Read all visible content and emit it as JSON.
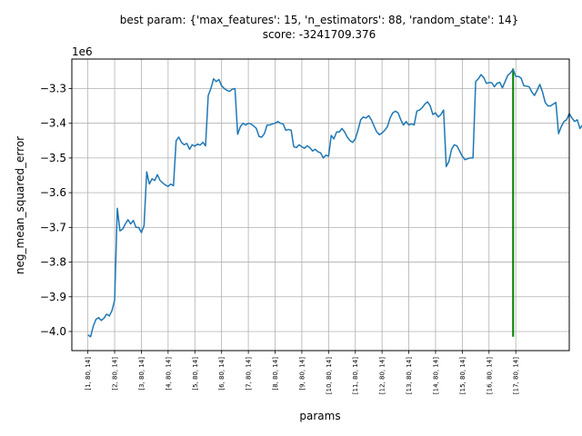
{
  "chart_data": {
    "type": "line",
    "title": "best param: {'max_features': 15, 'n_estimators': 88, 'random_state': 14}",
    "subtitle": "score: -3241709.376",
    "xlabel": "params",
    "ylabel": "neg_mean_squared_error",
    "offset_text": "1e6",
    "grid": true,
    "ylim": [
      -4.055,
      -3.215
    ],
    "xlim": [
      -6,
      180
    ],
    "yticks": [
      -4.0,
      -3.9,
      -3.8,
      -3.7,
      -3.6,
      -3.5,
      -3.4,
      -3.3
    ],
    "ytick_labels": [
      "−4.0",
      "−3.9",
      "−3.8",
      "−3.7",
      "−3.6",
      "−3.5",
      "−3.4",
      "−3.3"
    ],
    "xticks": [
      0,
      10,
      20,
      30,
      40,
      50,
      60,
      70,
      80,
      90,
      100,
      110,
      120,
      130,
      140,
      150,
      160
    ],
    "xtick_labels": [
      "[1, 80, 14]",
      "[2, 80, 14]",
      "[3, 80, 14]",
      "[4, 80, 14]",
      "[5, 80, 14]",
      "[6, 80, 14]",
      "[7, 80, 14]",
      "[8, 80, 14]",
      "[9, 80, 14]",
      "[10, 80, 14]",
      "[11, 80, 14]",
      "[12, 80, 14]",
      "[13, 80, 14]",
      "[14, 80, 14]",
      "[15, 80, 14]",
      "[16, 80, 14]",
      "[17, 80, 14]"
    ],
    "series": [
      {
        "color": "#1f77b4",
        "points": [
          [
            0,
            -4.01
          ],
          [
            1,
            -4.015
          ],
          [
            2,
            -3.985
          ],
          [
            3,
            -3.965
          ],
          [
            4,
            -3.96
          ],
          [
            5,
            -3.968
          ],
          [
            6,
            -3.962
          ],
          [
            7,
            -3.95
          ],
          [
            8,
            -3.955
          ],
          [
            9,
            -3.94
          ],
          [
            10,
            -3.91
          ],
          [
            11,
            -3.645
          ],
          [
            12,
            -3.71
          ],
          [
            13,
            -3.705
          ],
          [
            14,
            -3.69
          ],
          [
            15,
            -3.678
          ],
          [
            16,
            -3.69
          ],
          [
            17,
            -3.68
          ],
          [
            18,
            -3.7
          ],
          [
            19,
            -3.7
          ],
          [
            20,
            -3.715
          ],
          [
            21,
            -3.695
          ],
          [
            22,
            -3.54
          ],
          [
            23,
            -3.575
          ],
          [
            24,
            -3.56
          ],
          [
            25,
            -3.565
          ],
          [
            26,
            -3.548
          ],
          [
            27,
            -3.565
          ],
          [
            28,
            -3.572
          ],
          [
            29,
            -3.578
          ],
          [
            30,
            -3.582
          ],
          [
            31,
            -3.575
          ],
          [
            32,
            -3.58
          ],
          [
            33,
            -3.45
          ],
          [
            34,
            -3.44
          ],
          [
            35,
            -3.455
          ],
          [
            36,
            -3.462
          ],
          [
            37,
            -3.458
          ],
          [
            38,
            -3.475
          ],
          [
            39,
            -3.462
          ],
          [
            40,
            -3.466
          ],
          [
            41,
            -3.46
          ],
          [
            42,
            -3.463
          ],
          [
            43,
            -3.455
          ],
          [
            44,
            -3.465
          ],
          [
            45,
            -3.32
          ],
          [
            46,
            -3.3
          ],
          [
            47,
            -3.272
          ],
          [
            48,
            -3.28
          ],
          [
            49,
            -3.274
          ],
          [
            50,
            -3.292
          ],
          [
            51,
            -3.3
          ],
          [
            52,
            -3.305
          ],
          [
            53,
            -3.308
          ],
          [
            54,
            -3.302
          ],
          [
            55,
            -3.3
          ],
          [
            56,
            -3.432
          ],
          [
            57,
            -3.41
          ],
          [
            58,
            -3.4
          ],
          [
            59,
            -3.405
          ],
          [
            60,
            -3.4
          ],
          [
            61,
            -3.402
          ],
          [
            62,
            -3.408
          ],
          [
            63,
            -3.415
          ],
          [
            64,
            -3.438
          ],
          [
            65,
            -3.44
          ],
          [
            66,
            -3.43
          ],
          [
            67,
            -3.405
          ],
          [
            68,
            -3.405
          ],
          [
            69,
            -3.402
          ],
          [
            70,
            -3.4
          ],
          [
            71,
            -3.395
          ],
          [
            72,
            -3.4
          ],
          [
            73,
            -3.402
          ],
          [
            74,
            -3.42
          ],
          [
            75,
            -3.418
          ],
          [
            76,
            -3.42
          ],
          [
            77,
            -3.468
          ],
          [
            78,
            -3.47
          ],
          [
            79,
            -3.462
          ],
          [
            80,
            -3.468
          ],
          [
            81,
            -3.472
          ],
          [
            82,
            -3.465
          ],
          [
            83,
            -3.47
          ],
          [
            84,
            -3.48
          ],
          [
            85,
            -3.475
          ],
          [
            86,
            -3.482
          ],
          [
            87,
            -3.485
          ],
          [
            88,
            -3.5
          ],
          [
            89,
            -3.492
          ],
          [
            90,
            -3.495
          ],
          [
            91,
            -3.435
          ],
          [
            92,
            -3.445
          ],
          [
            93,
            -3.425
          ],
          [
            94,
            -3.425
          ],
          [
            95,
            -3.415
          ],
          [
            96,
            -3.425
          ],
          [
            97,
            -3.44
          ],
          [
            98,
            -3.45
          ],
          [
            99,
            -3.455
          ],
          [
            100,
            -3.445
          ],
          [
            101,
            -3.42
          ],
          [
            102,
            -3.39
          ],
          [
            103,
            -3.382
          ],
          [
            104,
            -3.385
          ],
          [
            105,
            -3.378
          ],
          [
            106,
            -3.39
          ],
          [
            107,
            -3.408
          ],
          [
            108,
            -3.425
          ],
          [
            109,
            -3.433
          ],
          [
            110,
            -3.428
          ],
          [
            111,
            -3.42
          ],
          [
            112,
            -3.41
          ],
          [
            113,
            -3.385
          ],
          [
            114,
            -3.37
          ],
          [
            115,
            -3.365
          ],
          [
            116,
            -3.37
          ],
          [
            117,
            -3.39
          ],
          [
            118,
            -3.405
          ],
          [
            119,
            -3.395
          ],
          [
            120,
            -3.405
          ],
          [
            121,
            -3.402
          ],
          [
            122,
            -3.405
          ],
          [
            123,
            -3.365
          ],
          [
            124,
            -3.362
          ],
          [
            125,
            -3.355
          ],
          [
            126,
            -3.345
          ],
          [
            127,
            -3.338
          ],
          [
            128,
            -3.35
          ],
          [
            129,
            -3.375
          ],
          [
            130,
            -3.37
          ],
          [
            131,
            -3.382
          ],
          [
            132,
            -3.375
          ],
          [
            133,
            -3.362
          ],
          [
            134,
            -3.525
          ],
          [
            135,
            -3.51
          ],
          [
            136,
            -3.475
          ],
          [
            137,
            -3.462
          ],
          [
            138,
            -3.465
          ],
          [
            139,
            -3.48
          ],
          [
            140,
            -3.495
          ],
          [
            141,
            -3.505
          ],
          [
            142,
            -3.502
          ],
          [
            143,
            -3.5
          ],
          [
            144,
            -3.5
          ],
          [
            145,
            -3.28
          ],
          [
            146,
            -3.272
          ],
          [
            147,
            -3.26
          ],
          [
            148,
            -3.268
          ],
          [
            149,
            -3.285
          ],
          [
            150,
            -3.283
          ],
          [
            151,
            -3.283
          ],
          [
            152,
            -3.295
          ],
          [
            153,
            -3.285
          ],
          [
            154,
            -3.282
          ],
          [
            155,
            -3.298
          ],
          [
            156,
            -3.28
          ],
          [
            157,
            -3.262
          ],
          [
            158,
            -3.255
          ],
          [
            159,
            -3.245
          ],
          [
            160,
            -3.265
          ],
          [
            161,
            -3.265
          ],
          [
            162,
            -3.27
          ],
          [
            163,
            -3.292
          ],
          [
            164,
            -3.293
          ],
          [
            165,
            -3.295
          ],
          [
            166,
            -3.31
          ],
          [
            167,
            -3.32
          ],
          [
            168,
            -3.305
          ],
          [
            169,
            -3.288
          ],
          [
            170,
            -3.31
          ],
          [
            171,
            -3.34
          ],
          [
            172,
            -3.35
          ],
          [
            173,
            -3.35
          ],
          [
            174,
            -3.345
          ],
          [
            175,
            -3.34
          ],
          [
            176,
            -3.43
          ],
          [
            177,
            -3.41
          ],
          [
            178,
            -3.395
          ],
          [
            179,
            -3.39
          ],
          [
            180,
            -3.372
          ],
          [
            181,
            -3.385
          ],
          [
            182,
            -3.395
          ],
          [
            183,
            -3.39
          ],
          [
            184,
            -3.415
          ],
          [
            185,
            -3.405
          ],
          [
            186,
            -3.41
          ]
        ]
      }
    ],
    "best_marker": {
      "x": 159,
      "y_from": -4.015,
      "y_to": -3.242,
      "color": "#008000"
    }
  }
}
